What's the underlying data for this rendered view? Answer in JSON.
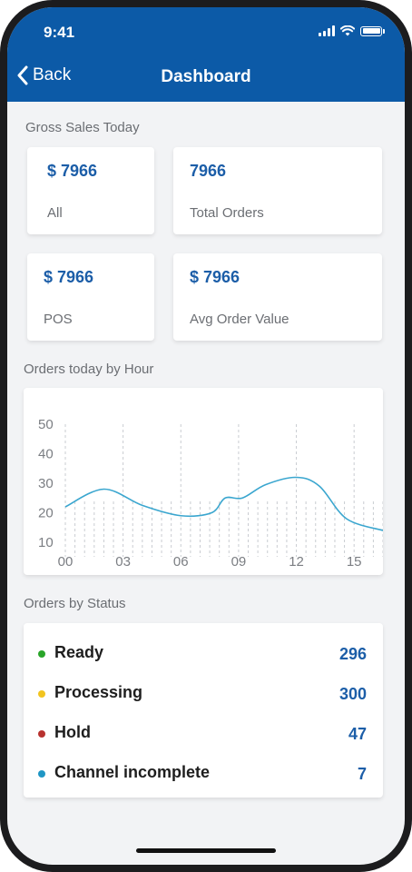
{
  "status_bar": {
    "time": "9:41"
  },
  "nav": {
    "back_label": "Back",
    "title": "Dashboard"
  },
  "gross_sales": {
    "section_title": "Gross Sales Today",
    "cards": [
      {
        "value": "$ 7966",
        "label": "All"
      },
      {
        "value": "7966",
        "label": "Total Orders"
      },
      {
        "value": "$ 7966",
        "label": "POS"
      },
      {
        "value": "$ 7966",
        "label": "Avg Order Value"
      }
    ]
  },
  "orders_by_hour": {
    "section_title": "Orders today by Hour"
  },
  "chart_data": {
    "type": "line",
    "x_tick_labels": [
      "00",
      "03",
      "06",
      "09",
      "12",
      "15"
    ],
    "y_tick_labels": [
      "50",
      "40",
      "30",
      "20",
      "10"
    ],
    "ylim": [
      10,
      50
    ],
    "xlim": [
      0,
      16.5
    ],
    "series": [
      {
        "points": [
          [
            0,
            22
          ],
          [
            2,
            28
          ],
          [
            4,
            22.5
          ],
          [
            6,
            19
          ],
          [
            7.6,
            20
          ],
          [
            8.3,
            25
          ],
          [
            9.2,
            25
          ],
          [
            10.4,
            29.5
          ],
          [
            12,
            32
          ],
          [
            13.2,
            29
          ],
          [
            14.6,
            18
          ],
          [
            16.5,
            14
          ]
        ]
      }
    ],
    "color": "#3aa6cf",
    "grid": "vertical-dashed"
  },
  "orders_by_status": {
    "section_title": "Orders by Status",
    "items": [
      {
        "name": "Ready",
        "count": "296",
        "color": "#2aa52a"
      },
      {
        "name": "Processing",
        "count": "300",
        "color": "#f2c41f"
      },
      {
        "name": "Hold",
        "count": "47",
        "color": "#b8322f"
      },
      {
        "name": "Channel incomplete",
        "count": "7",
        "color": "#1f96c4"
      }
    ]
  }
}
